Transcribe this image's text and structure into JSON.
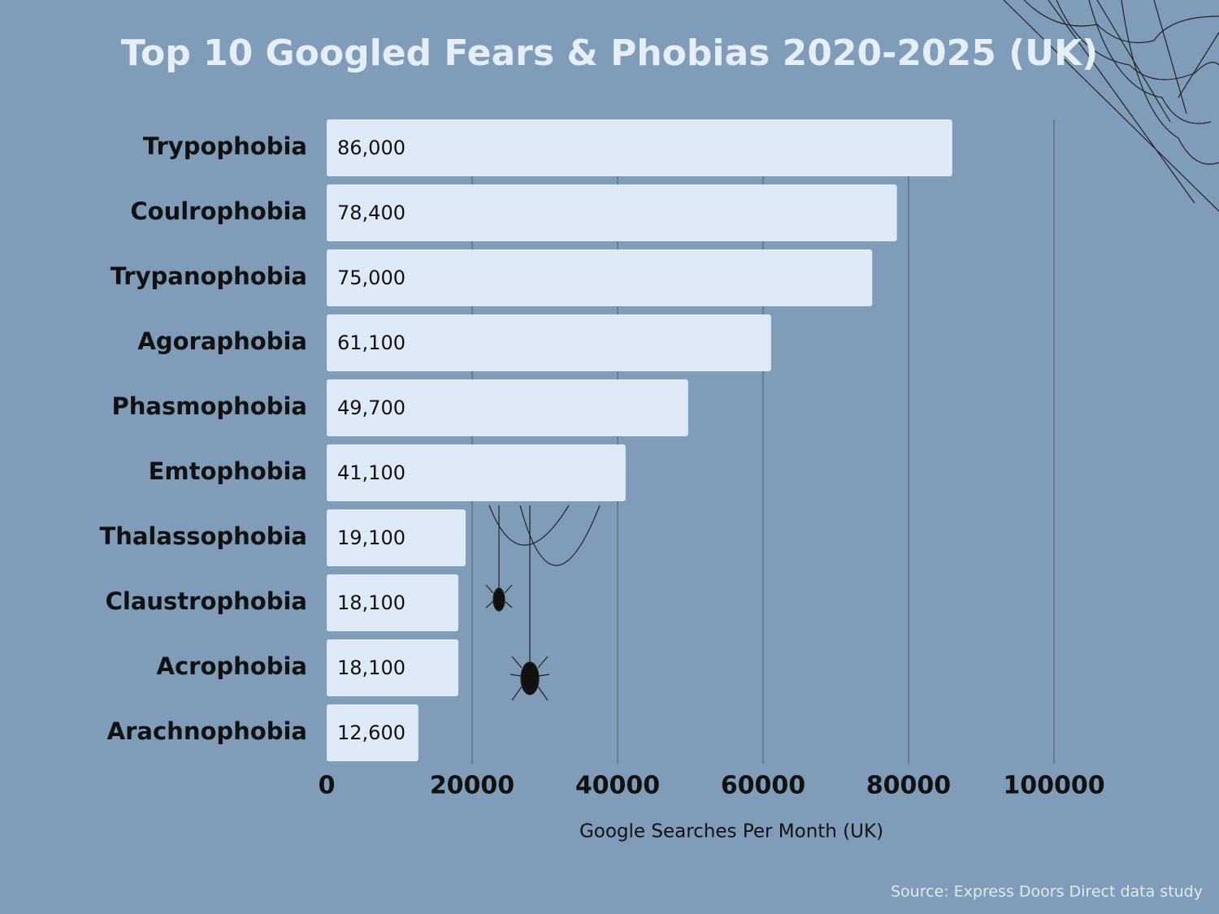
{
  "chart_data": {
    "type": "bar",
    "orientation": "horizontal",
    "title": "Top 10 Googled Fears & Phobias 2020-2025 (UK)",
    "categories": [
      "Trypophobia",
      "Coulrophobia",
      "Trypanophobia",
      "Agoraphobia",
      "Phasmophobia",
      "Emtophobia",
      "Thalassophobia",
      "Claustrophobia",
      "Acrophobia",
      "Arachnophobia"
    ],
    "values": [
      86000,
      78400,
      75000,
      61100,
      49700,
      41100,
      19100,
      18100,
      18100,
      12600
    ],
    "value_labels": [
      "86,000",
      "78,400",
      "75,000",
      "61,100",
      "49,700",
      "41,100",
      "19,100",
      "18,100",
      "18,100",
      "12,600"
    ],
    "color": "#dfeaf8",
    "xlim": [
      0,
      100000
    ],
    "xticks": [
      0,
      20000,
      40000,
      60000,
      80000,
      100000
    ],
    "x_label": "Google Searches Per Month (UK)",
    "grid": true,
    "source": "Source: Express Doors Direct data study"
  }
}
